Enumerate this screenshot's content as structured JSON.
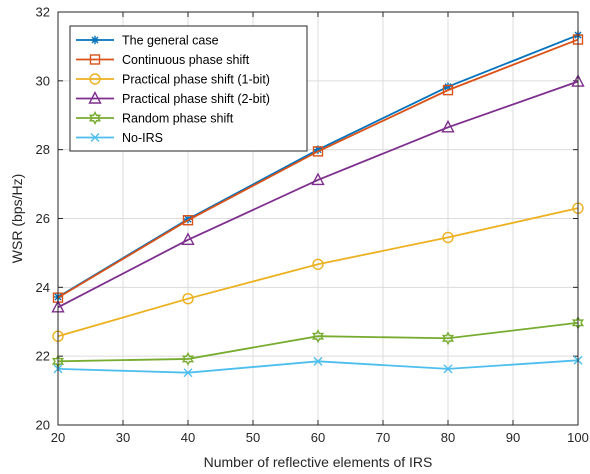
{
  "chart_data": {
    "type": "line",
    "title": "",
    "xlabel": "Number of reflective elements of IRS",
    "ylabel": "WSR (bps/Hz)",
    "x": [
      20,
      40,
      60,
      80,
      100
    ],
    "xlim": [
      20,
      100
    ],
    "ylim": [
      20,
      32
    ],
    "xticks": [
      "20",
      "30",
      "40",
      "50",
      "60",
      "70",
      "80",
      "90",
      "100"
    ],
    "yticks": [
      "20",
      "22",
      "24",
      "26",
      "28",
      "30",
      "32"
    ],
    "grid": true,
    "legend_position": "top-left",
    "series": [
      {
        "name": "The general case",
        "values": [
          23.72,
          25.98,
          28.0,
          29.83,
          31.33
        ],
        "color": "#0072bd",
        "marker": "asterisk"
      },
      {
        "name": "Continuous phase shift",
        "values": [
          23.7,
          25.95,
          27.95,
          29.73,
          31.2
        ],
        "color": "#d95319",
        "marker": "square"
      },
      {
        "name": "Practical phase shift (1-bit)",
        "values": [
          22.58,
          23.67,
          24.67,
          25.45,
          26.3
        ],
        "color": "#edb120",
        "marker": "circle"
      },
      {
        "name": "Practical phase shift (2-bit)",
        "values": [
          23.42,
          25.38,
          27.12,
          28.65,
          29.98
        ],
        "color": "#7e2f8e",
        "marker": "triangle"
      },
      {
        "name": "Random phase shift",
        "values": [
          21.85,
          21.92,
          22.58,
          22.52,
          22.97
        ],
        "color": "#77ac30",
        "marker": "hexagram"
      },
      {
        "name": "No-IRS",
        "values": [
          21.63,
          21.52,
          21.85,
          21.63,
          21.88
        ],
        "color": "#4dbeee",
        "marker": "x"
      }
    ]
  }
}
